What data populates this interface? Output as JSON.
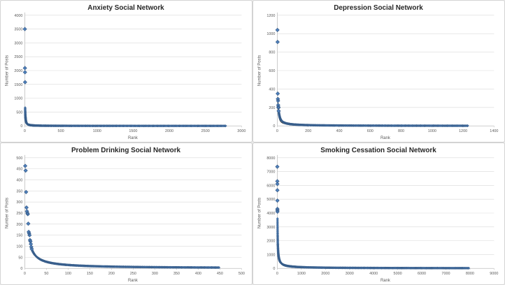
{
  "styles": {
    "marker_fill": "#4F81BD",
    "marker_stroke": "#385D8A",
    "grid_color": "#D9D9D9",
    "axis_color": "#BFBFBF",
    "title_color": "#262626",
    "tick_color": "#595959",
    "trendline_color": "#1a1a1a",
    "panel_border": "#d3d3d3"
  },
  "chart_data": [
    {
      "type": "scatter",
      "title": "Anxiety Social Network",
      "xlabel": "Rank",
      "ylabel": "Number of Posts",
      "xlim": [
        0,
        3000
      ],
      "ylim": [
        0,
        4000
      ],
      "xticks": [
        0,
        500,
        1000,
        1500,
        2000,
        2500,
        3000
      ],
      "yticks": [
        0,
        500,
        1000,
        1500,
        2000,
        2500,
        3000,
        3500,
        4000
      ],
      "grid": "horizontal",
      "legend": "none",
      "outliers": [
        [
          1,
          3500
        ],
        [
          2,
          2090
        ],
        [
          3,
          1940
        ],
        [
          4,
          1580
        ]
      ],
      "tail": {
        "start_rank": 5,
        "end_rank": 2780,
        "start_value": 660,
        "exponent": 1.16,
        "log_count": 170,
        "linear_count": 260
      }
    },
    {
      "type": "scatter",
      "title": "Depression Social Network",
      "xlabel": "Rank",
      "ylabel": "Number of Posts",
      "xlim": [
        0,
        1400
      ],
      "ylim": [
        0,
        1200
      ],
      "xticks": [
        0,
        200,
        400,
        600,
        800,
        1000,
        1200,
        1400
      ],
      "yticks": [
        0,
        200,
        400,
        600,
        800,
        1000,
        1200
      ],
      "grid": "horizontal",
      "legend": "none",
      "outliers": [
        [
          1,
          1040
        ],
        [
          2,
          910
        ],
        [
          3,
          350
        ],
        [
          4,
          292
        ],
        [
          5,
          272
        ],
        [
          6,
          225
        ],
        [
          7,
          205
        ],
        [
          8,
          198
        ],
        [
          9,
          162
        ]
      ],
      "tail": {
        "start_rank": 10,
        "end_rank": 1230,
        "start_value": 150,
        "exponent": 0.96,
        "log_count": 170,
        "linear_count": 260
      },
      "trendline": {
        "start_rank": 3,
        "end_rank": 1230,
        "start_value": 300,
        "exponent": 0.95
      }
    },
    {
      "type": "scatter",
      "title": "Problem Drinking Social Network",
      "xlabel": "Rank",
      "ylabel": "Number of Posts",
      "xlim": [
        0,
        500
      ],
      "ylim": [
        0,
        500
      ],
      "xticks": [
        0,
        50,
        100,
        150,
        200,
        250,
        300,
        350,
        400,
        450,
        500
      ],
      "yticks": [
        0,
        50,
        100,
        150,
        200,
        250,
        300,
        350,
        400,
        450,
        500
      ],
      "grid": "horizontal",
      "legend": "none",
      "outliers": [
        [
          1,
          463
        ],
        [
          2,
          442
        ],
        [
          3,
          345
        ],
        [
          4,
          275
        ],
        [
          5,
          258
        ],
        [
          6,
          250
        ],
        [
          7,
          245
        ],
        [
          8,
          202
        ],
        [
          9,
          165
        ],
        [
          10,
          158
        ],
        [
          11,
          150
        ],
        [
          12,
          128
        ],
        [
          13,
          122
        ],
        [
          14,
          110
        ],
        [
          15,
          97
        ],
        [
          16,
          88
        ]
      ],
      "tail": {
        "start_rank": 17,
        "end_rank": 448,
        "start_value": 82,
        "exponent": 0.94,
        "log_count": 170,
        "linear_count": 260
      }
    },
    {
      "type": "scatter",
      "title": "Smoking Cessation Social Network",
      "xlabel": "Rank",
      "ylabel": "Number of Posts",
      "xlim": [
        0,
        9000
      ],
      "ylim": [
        0,
        8000
      ],
      "xticks": [
        0,
        1000,
        2000,
        3000,
        4000,
        5000,
        6000,
        7000,
        8000,
        9000
      ],
      "yticks": [
        0,
        1000,
        2000,
        3000,
        4000,
        5000,
        6000,
        7000,
        8000
      ],
      "grid": "horizontal",
      "legend": "none",
      "outliers": [
        [
          1,
          7350
        ],
        [
          2,
          6300
        ],
        [
          3,
          6100
        ],
        [
          4,
          5650
        ],
        [
          5,
          4900
        ],
        [
          6,
          4300
        ],
        [
          7,
          4200
        ],
        [
          8,
          4100
        ]
      ],
      "tail": {
        "start_rank": 9,
        "end_rank": 7950,
        "start_value": 3600,
        "exponent": 0.78,
        "log_count": 190,
        "linear_count": 280
      }
    }
  ]
}
